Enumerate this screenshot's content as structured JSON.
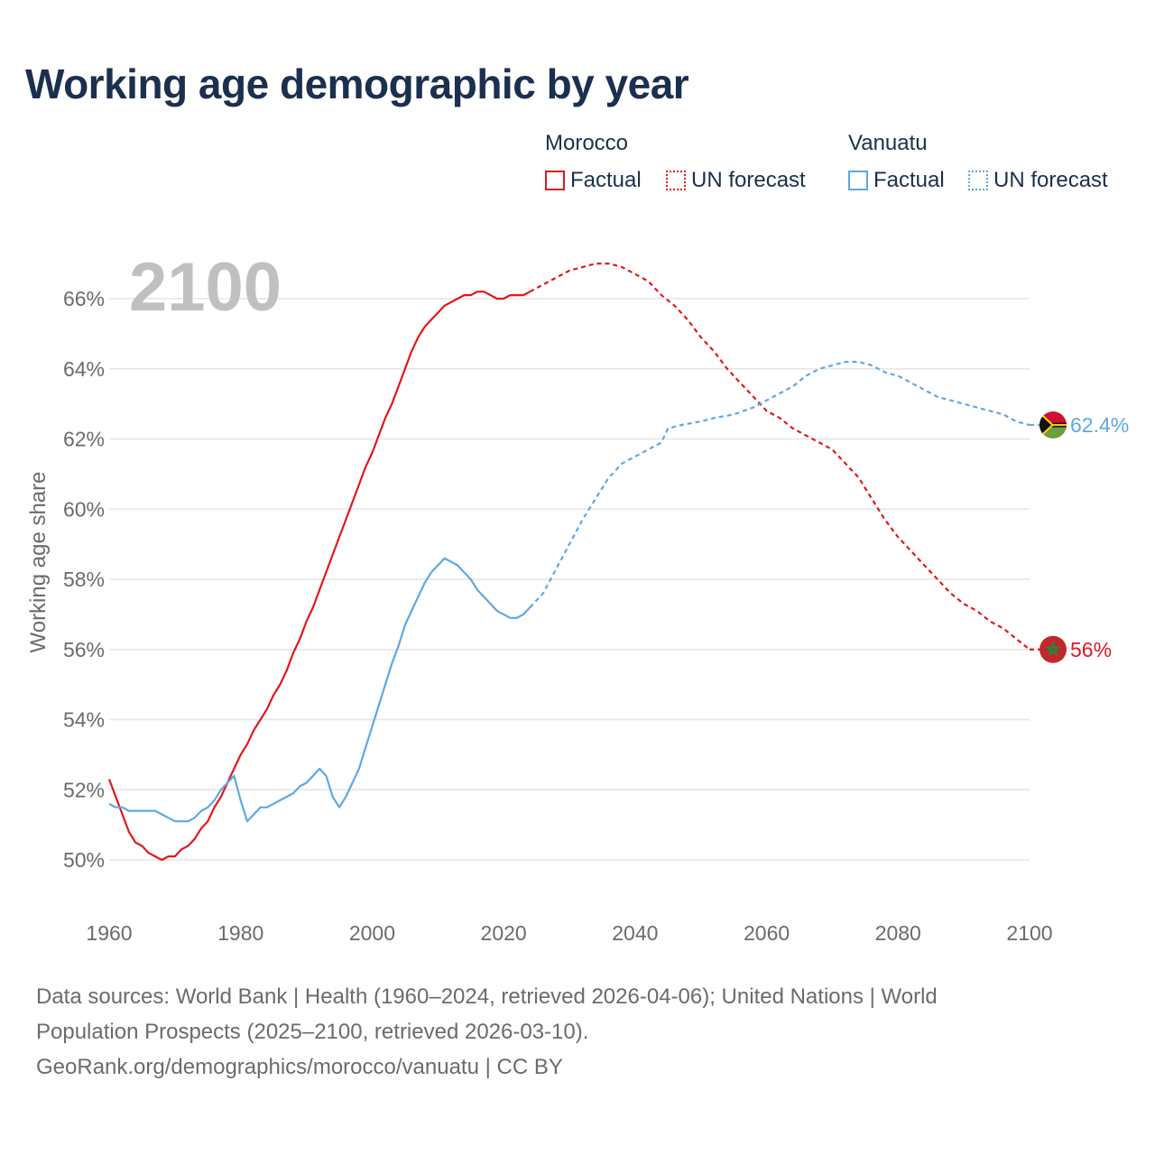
{
  "title": "Working age demographic by year",
  "legend": [
    {
      "group": "Morocco",
      "factual_label": "Factual",
      "forecast_label": "UN forecast",
      "color": "#e3171b"
    },
    {
      "group": "Vanuatu",
      "factual_label": "Factual",
      "forecast_label": "UN forecast",
      "color": "#5fa8e3"
    }
  ],
  "year_label": "2100",
  "footer": {
    "line1": "Data sources: World Bank | Health (1960–2024, retrieved 2026-04-06); United Nations | World",
    "line2": "Population Prospects (2025–2100, retrieved 2026-03-10).",
    "line3": "GeoRank.org/demographics/morocco/vanuatu | CC BY"
  },
  "colors": {
    "morocco": "#e3171b",
    "vanuatu": "#5fa8e3",
    "grid": "#e6e6e6",
    "axis_text": "#6b6b6b",
    "year_watermark": "#c0c0c0"
  },
  "chart_data": {
    "type": "line",
    "title": "Working age demographic by year",
    "xlabel": "",
    "ylabel": "Working age share",
    "xlim": [
      1960,
      2100
    ],
    "ylim": [
      49,
      67
    ],
    "x_ticks": [
      1960,
      1980,
      2000,
      2020,
      2040,
      2060,
      2080,
      2100
    ],
    "x_tick_labels": [
      "1960",
      "1980",
      "2000",
      "2020",
      "2040",
      "2060",
      "2080",
      "2100"
    ],
    "y_ticks": [
      50,
      52,
      54,
      56,
      58,
      60,
      62,
      64,
      66
    ],
    "y_tick_labels": [
      "50%",
      "52%",
      "54%",
      "56%",
      "58%",
      "60%",
      "62%",
      "64%",
      "66%"
    ],
    "forecast_start": 2024,
    "series": [
      {
        "name": "Morocco",
        "end_label": "56%",
        "flag": "morocco-flag-icon",
        "points": [
          [
            1960,
            52.3
          ],
          [
            1961,
            51.8
          ],
          [
            1962,
            51.3
          ],
          [
            1963,
            50.8
          ],
          [
            1964,
            50.5
          ],
          [
            1965,
            50.4
          ],
          [
            1966,
            50.2
          ],
          [
            1967,
            50.1
          ],
          [
            1968,
            50.0
          ],
          [
            1969,
            50.1
          ],
          [
            1970,
            50.1
          ],
          [
            1971,
            50.3
          ],
          [
            1972,
            50.4
          ],
          [
            1973,
            50.6
          ],
          [
            1974,
            50.9
          ],
          [
            1975,
            51.1
          ],
          [
            1976,
            51.5
          ],
          [
            1977,
            51.8
          ],
          [
            1978,
            52.2
          ],
          [
            1979,
            52.6
          ],
          [
            1980,
            53.0
          ],
          [
            1981,
            53.3
          ],
          [
            1982,
            53.7
          ],
          [
            1983,
            54.0
          ],
          [
            1984,
            54.3
          ],
          [
            1985,
            54.7
          ],
          [
            1986,
            55.0
          ],
          [
            1987,
            55.4
          ],
          [
            1988,
            55.9
          ],
          [
            1989,
            56.3
          ],
          [
            1990,
            56.8
          ],
          [
            1991,
            57.2
          ],
          [
            1992,
            57.7
          ],
          [
            1993,
            58.2
          ],
          [
            1994,
            58.7
          ],
          [
            1995,
            59.2
          ],
          [
            1996,
            59.7
          ],
          [
            1997,
            60.2
          ],
          [
            1998,
            60.7
          ],
          [
            1999,
            61.2
          ],
          [
            2000,
            61.6
          ],
          [
            2001,
            62.1
          ],
          [
            2002,
            62.6
          ],
          [
            2003,
            63.0
          ],
          [
            2004,
            63.5
          ],
          [
            2005,
            64.0
          ],
          [
            2006,
            64.5
          ],
          [
            2007,
            64.9
          ],
          [
            2008,
            65.2
          ],
          [
            2009,
            65.4
          ],
          [
            2010,
            65.6
          ],
          [
            2011,
            65.8
          ],
          [
            2012,
            65.9
          ],
          [
            2013,
            66.0
          ],
          [
            2014,
            66.1
          ],
          [
            2015,
            66.1
          ],
          [
            2016,
            66.2
          ],
          [
            2017,
            66.2
          ],
          [
            2018,
            66.1
          ],
          [
            2019,
            66.0
          ],
          [
            2020,
            66.0
          ],
          [
            2021,
            66.1
          ],
          [
            2022,
            66.1
          ],
          [
            2023,
            66.1
          ],
          [
            2024,
            66.2
          ],
          [
            2026,
            66.4
          ],
          [
            2028,
            66.6
          ],
          [
            2030,
            66.8
          ],
          [
            2032,
            66.9
          ],
          [
            2034,
            67.0
          ],
          [
            2036,
            67.0
          ],
          [
            2038,
            66.9
          ],
          [
            2040,
            66.7
          ],
          [
            2042,
            66.5
          ],
          [
            2044,
            66.1
          ],
          [
            2046,
            65.8
          ],
          [
            2048,
            65.4
          ],
          [
            2050,
            64.9
          ],
          [
            2052,
            64.5
          ],
          [
            2054,
            64.0
          ],
          [
            2056,
            63.6
          ],
          [
            2058,
            63.2
          ],
          [
            2060,
            62.8
          ],
          [
            2062,
            62.6
          ],
          [
            2064,
            62.3
          ],
          [
            2066,
            62.1
          ],
          [
            2068,
            61.9
          ],
          [
            2070,
            61.7
          ],
          [
            2072,
            61.3
          ],
          [
            2074,
            60.9
          ],
          [
            2076,
            60.3
          ],
          [
            2078,
            59.7
          ],
          [
            2080,
            59.2
          ],
          [
            2082,
            58.8
          ],
          [
            2084,
            58.4
          ],
          [
            2086,
            58.0
          ],
          [
            2088,
            57.6
          ],
          [
            2090,
            57.3
          ],
          [
            2092,
            57.1
          ],
          [
            2094,
            56.8
          ],
          [
            2096,
            56.6
          ],
          [
            2098,
            56.3
          ],
          [
            2100,
            56.0
          ]
        ]
      },
      {
        "name": "Vanuatu",
        "end_label": "62.4%",
        "flag": "vanuatu-flag-icon",
        "points": [
          [
            1960,
            51.6
          ],
          [
            1961,
            51.5
          ],
          [
            1962,
            51.5
          ],
          [
            1963,
            51.4
          ],
          [
            1964,
            51.4
          ],
          [
            1965,
            51.4
          ],
          [
            1966,
            51.4
          ],
          [
            1967,
            51.4
          ],
          [
            1968,
            51.3
          ],
          [
            1969,
            51.2
          ],
          [
            1970,
            51.1
          ],
          [
            1971,
            51.1
          ],
          [
            1972,
            51.1
          ],
          [
            1973,
            51.2
          ],
          [
            1974,
            51.4
          ],
          [
            1975,
            51.5
          ],
          [
            1976,
            51.7
          ],
          [
            1977,
            52.0
          ],
          [
            1978,
            52.2
          ],
          [
            1979,
            52.4
          ],
          [
            1980,
            51.7
          ],
          [
            1981,
            51.1
          ],
          [
            1982,
            51.3
          ],
          [
            1983,
            51.5
          ],
          [
            1984,
            51.5
          ],
          [
            1985,
            51.6
          ],
          [
            1986,
            51.7
          ],
          [
            1987,
            51.8
          ],
          [
            1988,
            51.9
          ],
          [
            1989,
            52.1
          ],
          [
            1990,
            52.2
          ],
          [
            1991,
            52.4
          ],
          [
            1992,
            52.6
          ],
          [
            1993,
            52.4
          ],
          [
            1994,
            51.8
          ],
          [
            1995,
            51.5
          ],
          [
            1996,
            51.8
          ],
          [
            1997,
            52.2
          ],
          [
            1998,
            52.6
          ],
          [
            1999,
            53.2
          ],
          [
            2000,
            53.8
          ],
          [
            2001,
            54.4
          ],
          [
            2002,
            55.0
          ],
          [
            2003,
            55.6
          ],
          [
            2004,
            56.1
          ],
          [
            2005,
            56.7
          ],
          [
            2006,
            57.1
          ],
          [
            2007,
            57.5
          ],
          [
            2008,
            57.9
          ],
          [
            2009,
            58.2
          ],
          [
            2010,
            58.4
          ],
          [
            2011,
            58.6
          ],
          [
            2012,
            58.5
          ],
          [
            2013,
            58.4
          ],
          [
            2014,
            58.2
          ],
          [
            2015,
            58.0
          ],
          [
            2016,
            57.7
          ],
          [
            2017,
            57.5
          ],
          [
            2018,
            57.3
          ],
          [
            2019,
            57.1
          ],
          [
            2020,
            57.0
          ],
          [
            2021,
            56.9
          ],
          [
            2022,
            56.9
          ],
          [
            2023,
            57.0
          ],
          [
            2024,
            57.2
          ],
          [
            2026,
            57.6
          ],
          [
            2028,
            58.3
          ],
          [
            2030,
            59.0
          ],
          [
            2032,
            59.7
          ],
          [
            2034,
            60.3
          ],
          [
            2036,
            60.9
          ],
          [
            2038,
            61.3
          ],
          [
            2040,
            61.5
          ],
          [
            2042,
            61.7
          ],
          [
            2044,
            61.9
          ],
          [
            2045,
            62.3
          ],
          [
            2047,
            62.4
          ],
          [
            2050,
            62.5
          ],
          [
            2052,
            62.6
          ],
          [
            2055,
            62.7
          ],
          [
            2058,
            62.9
          ],
          [
            2060,
            63.1
          ],
          [
            2062,
            63.3
          ],
          [
            2064,
            63.5
          ],
          [
            2066,
            63.8
          ],
          [
            2068,
            64.0
          ],
          [
            2070,
            64.1
          ],
          [
            2072,
            64.2
          ],
          [
            2074,
            64.2
          ],
          [
            2076,
            64.1
          ],
          [
            2078,
            63.9
          ],
          [
            2080,
            63.8
          ],
          [
            2082,
            63.6
          ],
          [
            2084,
            63.4
          ],
          [
            2086,
            63.2
          ],
          [
            2088,
            63.1
          ],
          [
            2090,
            63.0
          ],
          [
            2092,
            62.9
          ],
          [
            2094,
            62.8
          ],
          [
            2096,
            62.7
          ],
          [
            2098,
            62.5
          ],
          [
            2100,
            62.4
          ]
        ]
      }
    ]
  }
}
